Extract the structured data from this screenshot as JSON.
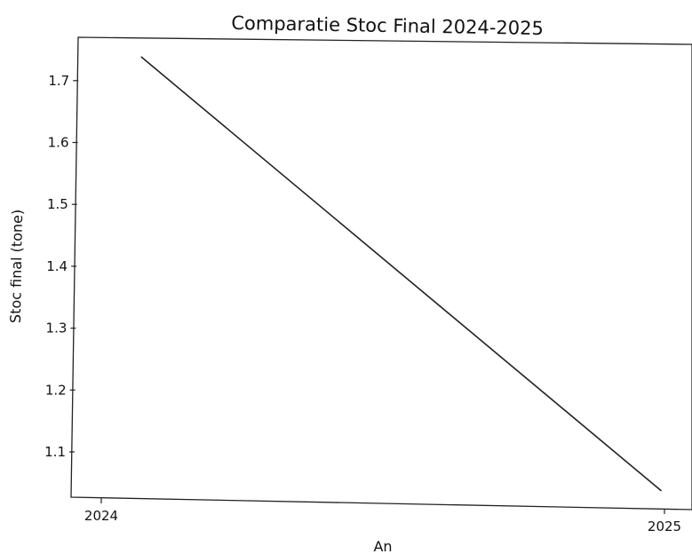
{
  "chart_data": {
    "type": "line",
    "title": "Comparatie Stoc Final 2024-2025",
    "xlabel": "An",
    "ylabel": "Stoc final (tone)",
    "x": [
      2024,
      2025
    ],
    "x_ticks": [
      "2024",
      "2025"
    ],
    "y_ticks": [
      "1.1",
      "1.2",
      "1.3",
      "1.4",
      "1.5",
      "1.6",
      "1.7"
    ],
    "series": [
      {
        "values": [
          1.74,
          1.05
        ],
        "color": "#222222"
      }
    ],
    "ylim": [
      1.025,
      1.775
    ],
    "grid": false,
    "legend": "none"
  }
}
